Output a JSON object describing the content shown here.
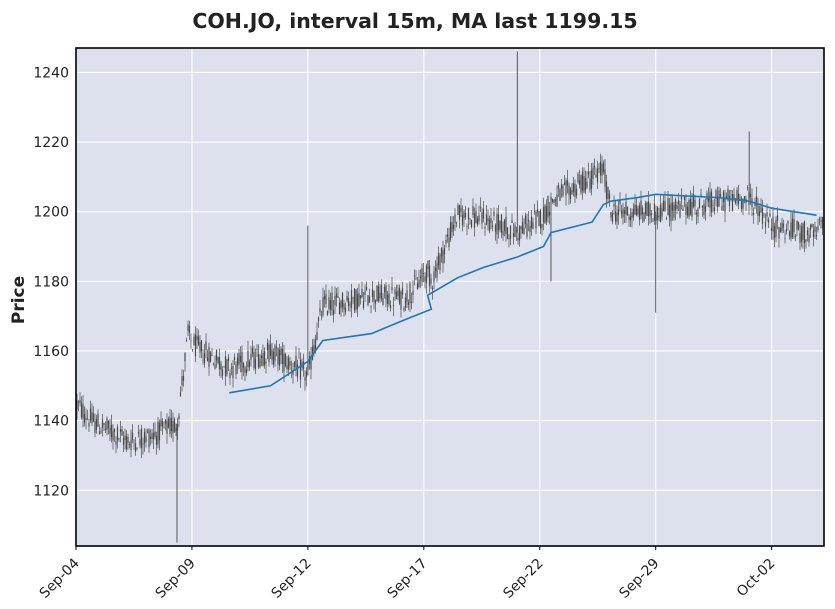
{
  "chart_data": {
    "type": "candlestick",
    "title": "COH.JO, interval 15m, MA last 1199.15",
    "ylabel": "Price",
    "xlabel": "",
    "ylim": [
      1104,
      1247
    ],
    "yticks": [
      1120,
      1140,
      1160,
      1180,
      1200,
      1220,
      1240
    ],
    "xticks": [
      "Sep-04",
      "Sep-09",
      "Sep-12",
      "Sep-17",
      "Sep-22",
      "Sep-29",
      "Oct-02"
    ],
    "grid": true,
    "colors": {
      "background": "#dce1ed",
      "grid": "#ffffff",
      "candle": "#4a4a4a",
      "ma_line": "#1f77b4",
      "text": "#222222"
    },
    "price_path": [
      {
        "x": "Sep-04",
        "price": 1145
      },
      {
        "x": "Sep-04+",
        "price": 1140
      },
      {
        "x": "Sep-05",
        "price": 1134
      },
      {
        "x": "Sep-06",
        "price": 1136
      },
      {
        "x": "Sep-07",
        "price": 1139
      },
      {
        "x": "Sep-08",
        "price": 1165
      },
      {
        "x": "Sep-09",
        "price": 1162
      },
      {
        "x": "Sep-10",
        "price": 1155
      },
      {
        "x": "Sep-11",
        "price": 1160
      },
      {
        "x": "Sep-12",
        "price": 1153
      },
      {
        "x": "Sep-13",
        "price": 1173
      },
      {
        "x": "Sep-14",
        "price": 1176
      },
      {
        "x": "Sep-15",
        "price": 1175
      },
      {
        "x": "Sep-16",
        "price": 1180
      },
      {
        "x": "Sep-17",
        "price": 1183
      },
      {
        "x": "Sep-18",
        "price": 1199
      },
      {
        "x": "Sep-19",
        "price": 1198
      },
      {
        "x": "Sep-20",
        "price": 1194
      },
      {
        "x": "Sep-21",
        "price": 1199
      },
      {
        "x": "Sep-22",
        "price": 1203
      },
      {
        "x": "Sep-23",
        "price": 1210
      },
      {
        "x": "Sep-24",
        "price": 1212
      },
      {
        "x": "Sep-25",
        "price": 1200
      },
      {
        "x": "Sep-29",
        "price": 1200
      },
      {
        "x": "Sep-30",
        "price": 1203
      },
      {
        "x": "Oct-01",
        "price": 1204
      },
      {
        "x": "Oct-02",
        "price": 1196
      },
      {
        "x": "Oct-03",
        "price": 1193
      },
      {
        "x": "Oct-03+",
        "price": 1199
      }
    ],
    "spikes": [
      {
        "x": "Sep-07",
        "low": 1105
      },
      {
        "x": "Sep-12",
        "high": 1196
      },
      {
        "x": "Sep-20",
        "high": 1246
      },
      {
        "x": "Sep-22",
        "low": 1180
      },
      {
        "x": "Sep-29",
        "low": 1171
      },
      {
        "x": "Oct-01",
        "high": 1223
      }
    ],
    "series": [
      {
        "name": "MA",
        "x": [
          "Sep-10",
          "Sep-11",
          "Sep-12",
          "Sep-13",
          "Sep-14",
          "Sep-15",
          "Sep-16",
          "Sep-17",
          "Sep-18",
          "Sep-19",
          "Sep-20",
          "Sep-21",
          "Sep-22",
          "Sep-23",
          "Sep-24",
          "Sep-25",
          "Sep-26",
          "Sep-29",
          "Sep-30",
          "Oct-01",
          "Oct-02",
          "Oct-03"
        ],
        "values": [
          1148,
          1150,
          1157,
          1163,
          1165,
          1169,
          1172,
          1176,
          1181,
          1184,
          1187,
          1190,
          1194,
          1197,
          1202,
          1203,
          1204,
          1205,
          1204,
          1203,
          1201,
          1199
        ]
      }
    ]
  }
}
